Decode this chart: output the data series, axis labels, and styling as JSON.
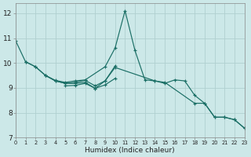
{
  "xlabel": "Humidex (Indice chaleur)",
  "bg_color": "#cce8e8",
  "grid_color_major": "#b0d0d0",
  "grid_color_minor": "#e0f0f0",
  "line_color": "#1a6e65",
  "xlim": [
    0,
    23
  ],
  "ylim": [
    7.0,
    12.4
  ],
  "yticks": [
    7,
    8,
    9,
    10,
    11,
    12
  ],
  "xticks": [
    0,
    1,
    2,
    3,
    4,
    5,
    6,
    7,
    8,
    9,
    10,
    11,
    12,
    13,
    14,
    15,
    16,
    17,
    18,
    19,
    20,
    21,
    22,
    23
  ],
  "series": [
    {
      "x": [
        0,
        1,
        2,
        3,
        4,
        5,
        6,
        7,
        9,
        10,
        11,
        12,
        13,
        14,
        15,
        16,
        17,
        18,
        19,
        20,
        21,
        22,
        23
      ],
      "y": [
        10.9,
        10.05,
        9.85,
        9.5,
        9.3,
        9.22,
        9.28,
        9.32,
        9.85,
        10.6,
        12.1,
        10.5,
        9.32,
        9.28,
        9.18,
        9.32,
        9.28,
        8.7,
        8.38,
        7.82,
        7.82,
        7.72,
        7.38
      ]
    },
    {
      "x": [
        1,
        2,
        3,
        4,
        5,
        6,
        7,
        8,
        9,
        10
      ],
      "y": [
        10.05,
        9.85,
        9.5,
        9.28,
        9.18,
        9.22,
        9.3,
        9.08,
        9.28,
        9.88
      ]
    },
    {
      "x": [
        5,
        6,
        7,
        8,
        9,
        10
      ],
      "y": [
        9.08,
        9.1,
        9.18,
        8.98,
        9.12,
        9.38
      ]
    },
    {
      "x": [
        3,
        4,
        5,
        6,
        7,
        8,
        9,
        10,
        14,
        15,
        18,
        19,
        20,
        21,
        22,
        23
      ],
      "y": [
        9.5,
        9.28,
        9.18,
        9.18,
        9.22,
        8.98,
        9.28,
        9.82,
        9.28,
        9.22,
        8.38,
        8.38,
        7.82,
        7.82,
        7.72,
        7.38
      ]
    }
  ]
}
